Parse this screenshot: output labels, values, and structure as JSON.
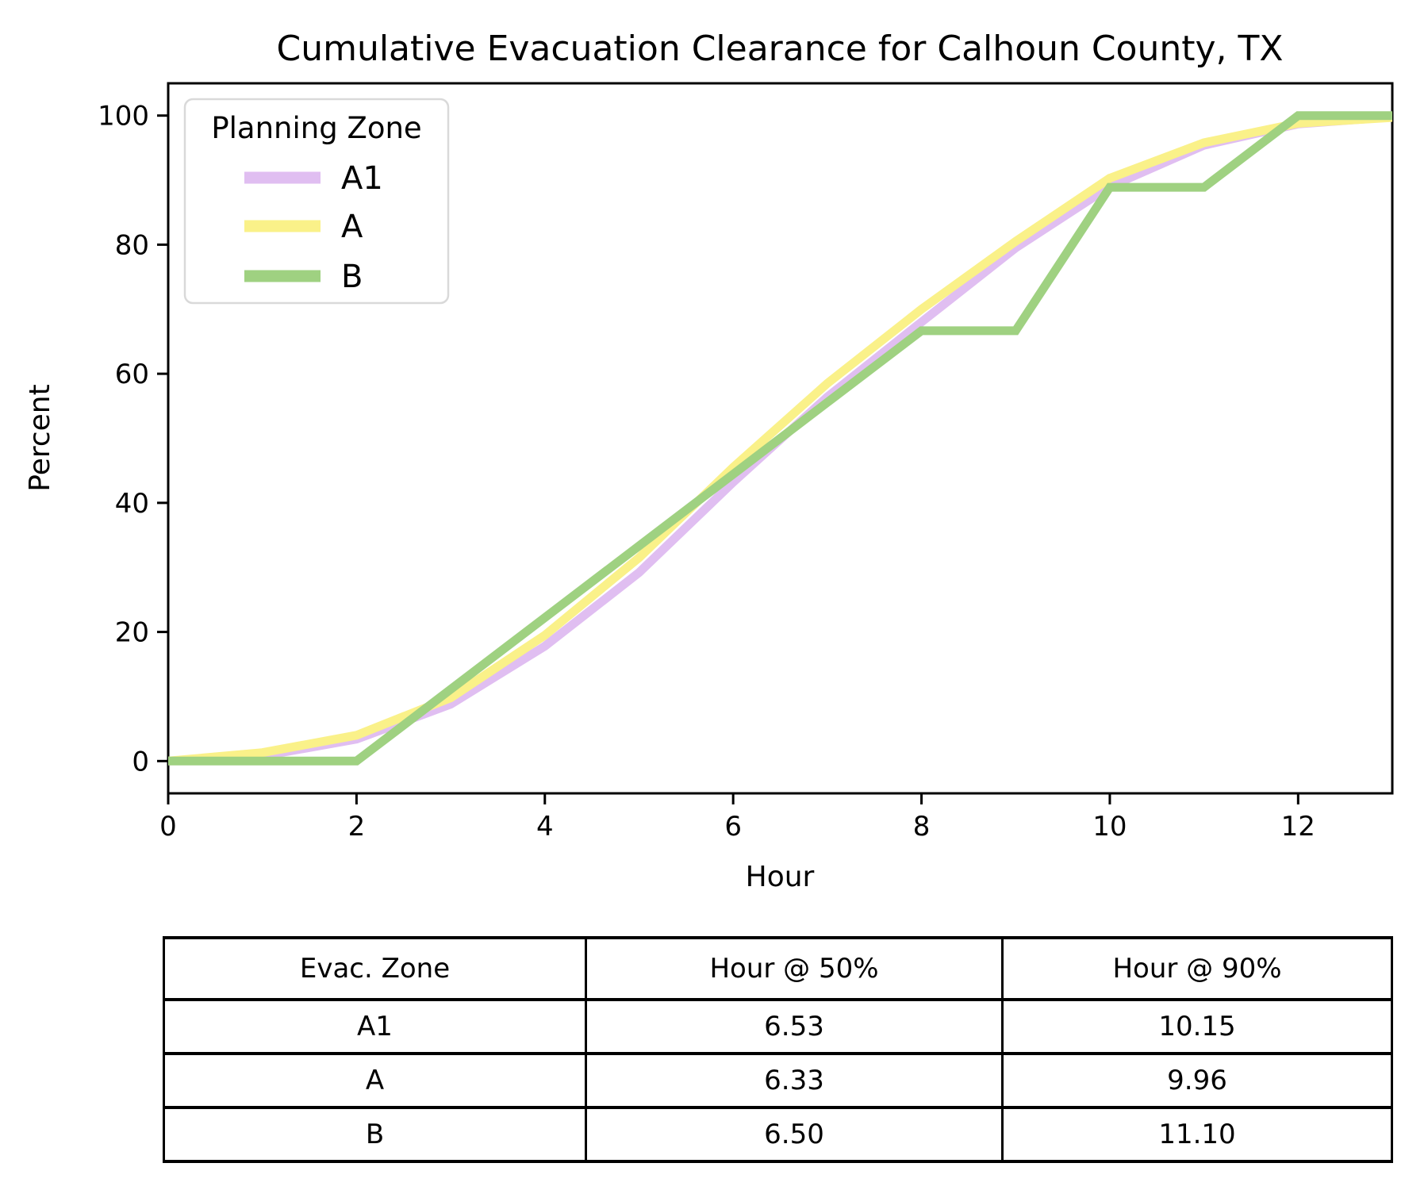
{
  "chart_data": {
    "type": "line",
    "title": "Cumulative Evacuation Clearance for Calhoun County, TX",
    "xlabel": "Hour",
    "ylabel": "Percent",
    "xlim": [
      0,
      13
    ],
    "ylim": [
      -5,
      105
    ],
    "grid": false,
    "xticks": [
      0,
      2,
      4,
      6,
      8,
      10,
      12
    ],
    "yticks": [
      0,
      20,
      40,
      60,
      80,
      100
    ],
    "x": [
      0,
      1,
      2,
      3,
      4,
      5,
      6,
      7,
      8,
      9,
      10,
      11,
      12,
      13
    ],
    "series": [
      {
        "name": "A1",
        "color": "#e0bef1",
        "values": [
          0,
          0.8,
          3.4,
          8.8,
          17.8,
          29.2,
          43.2,
          56.4,
          68.0,
          79.5,
          89.0,
          95.4,
          98.7,
          99.8
        ]
      },
      {
        "name": "A",
        "color": "#faf189",
        "values": [
          0,
          1.3,
          4.0,
          9.8,
          19.5,
          31.5,
          45.5,
          58.5,
          70.0,
          80.5,
          90.3,
          95.8,
          98.8,
          99.7
        ]
      },
      {
        "name": "B",
        "color": "#9fd181",
        "values": [
          0,
          0,
          0,
          11.11,
          22.22,
          33.33,
          44.44,
          55.56,
          66.67,
          66.67,
          88.89,
          88.89,
          100,
          100
        ]
      }
    ],
    "legend": {
      "title": "Planning Zone",
      "position": "upper left",
      "border_color": "#d9d9d9"
    }
  },
  "table": {
    "headers": [
      "Evac. Zone",
      "Hour @ 50%",
      "Hour @ 90%"
    ],
    "rows": [
      [
        "A1",
        "6.53",
        "10.15"
      ],
      [
        "A",
        "6.33",
        "9.96"
      ],
      [
        "B",
        "6.50",
        "11.10"
      ]
    ]
  }
}
